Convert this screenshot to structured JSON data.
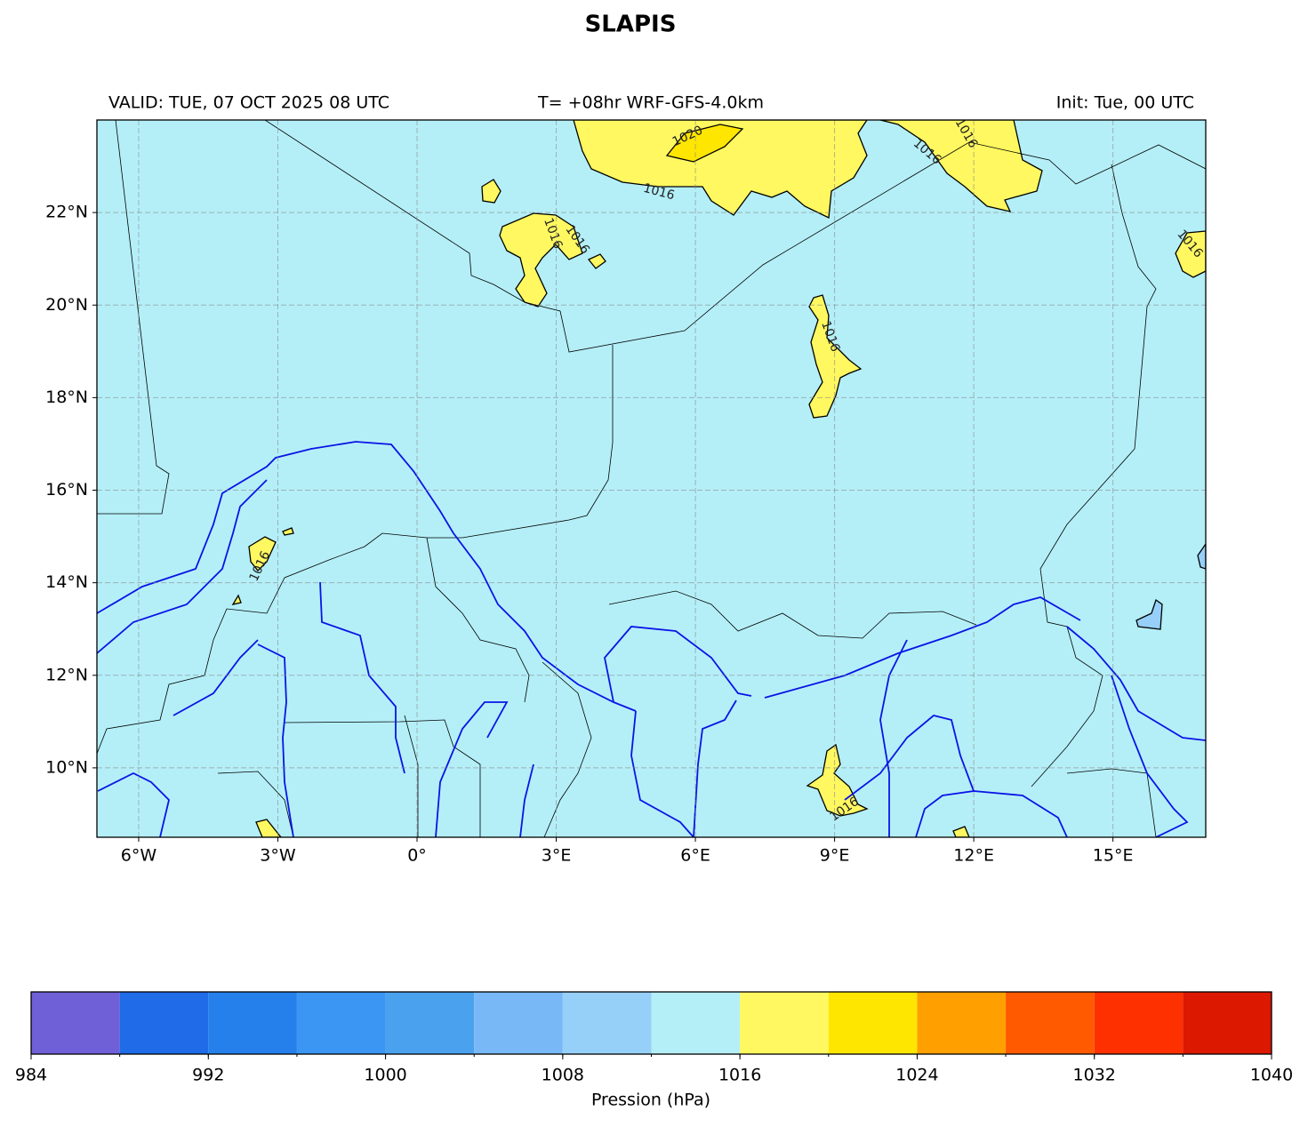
{
  "title": "SLAPIS",
  "header": {
    "valid": "VALID: TUE, 07 OCT 2025 08 UTC",
    "run": "T= +08hr WRF-GFS-4.0km",
    "init": "Init: Tue, 00 UTC"
  },
  "map": {
    "lon_lim": [
      -6.9,
      17
    ],
    "lat_lim": [
      8.5,
      24
    ],
    "background": "#b4eff8",
    "lat_ticks": [
      {
        "value": 10,
        "label": "10°N"
      },
      {
        "value": 12,
        "label": "12°N"
      },
      {
        "value": 14,
        "label": "14°N"
      },
      {
        "value": 16,
        "label": "16°N"
      },
      {
        "value": 18,
        "label": "18°N"
      },
      {
        "value": 20,
        "label": "20°N"
      },
      {
        "value": 22,
        "label": "22°N"
      }
    ],
    "lon_ticks": [
      {
        "value": -6,
        "label": "6°W"
      },
      {
        "value": -3,
        "label": "3°W"
      },
      {
        "value": 0,
        "label": "0°"
      },
      {
        "value": 3,
        "label": "3°E"
      },
      {
        "value": 6,
        "label": "6°E"
      },
      {
        "value": 9,
        "label": "9°E"
      },
      {
        "value": 12,
        "label": "12°E"
      },
      {
        "value": 15,
        "label": "15°E"
      }
    ],
    "contour_labels": [
      "1020",
      "1016",
      "1016",
      "1016",
      "1016",
      "1016",
      "1016",
      "1016",
      "1016",
      "1016"
    ]
  },
  "colorbar": {
    "label": "Pression (hPa)",
    "bounds": [
      984,
      988,
      992,
      996,
      1000,
      1004,
      1008,
      1012,
      1016,
      1020,
      1024,
      1028,
      1032,
      1036,
      1040
    ],
    "colors": [
      "#7060d8",
      "#1f6be8",
      "#2680ec",
      "#3a96f2",
      "#4aa2ee",
      "#78b8f6",
      "#96d0f8",
      "#b4eff8",
      "#fff860",
      "#ffe600",
      "#ffa000",
      "#ff5a00",
      "#ff3000",
      "#dc1800"
    ],
    "ticks": [
      984,
      992,
      1000,
      1008,
      1016,
      1024,
      1032,
      1040
    ]
  }
}
